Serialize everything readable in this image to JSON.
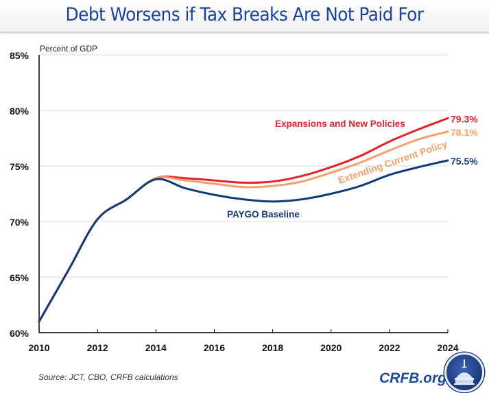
{
  "header": {
    "title": "Debt Worsens if Tax Breaks Are Not Paid For"
  },
  "footer": {
    "source": "Source: JCT, CBO, CRFB calculations",
    "brand": "CRFB.org",
    "logo_icon": "capitol-dome-seal-icon"
  },
  "colors": {
    "title": "#1a43a0",
    "red": "#e4202a",
    "orange": "#f4a06a",
    "navy": "#123a78"
  },
  "chart_data": {
    "type": "line",
    "title": "Debt Worsens if Tax Breaks Are Not Paid For",
    "ylabel": "Percent of GDP",
    "xlabel": "",
    "x": [
      2010,
      2011,
      2012,
      2013,
      2014,
      2015,
      2016,
      2017,
      2018,
      2019,
      2020,
      2021,
      2022,
      2023,
      2024
    ],
    "xlim": [
      2010,
      2024
    ],
    "ylim": [
      60,
      85
    ],
    "xticks": [
      2010,
      2012,
      2014,
      2016,
      2018,
      2020,
      2022,
      2024
    ],
    "xtick_labels": [
      "2010",
      "2012",
      "2014",
      "2016",
      "2018",
      "2020",
      "2022",
      "2024"
    ],
    "yticks": [
      60,
      65,
      70,
      75,
      80,
      85
    ],
    "ytick_labels": [
      "60%",
      "65%",
      "70%",
      "75%",
      "80%",
      "85%"
    ],
    "grid": "horizontal",
    "legend": "inline labels",
    "series": [
      {
        "name": "Expansions and New Policies",
        "color": "#e4202a",
        "end_label": "79.3%",
        "values": [
          61.0,
          65.6,
          70.2,
          72.0,
          73.9,
          73.9,
          73.7,
          73.5,
          73.6,
          74.1,
          74.9,
          75.9,
          77.2,
          78.3,
          79.3
        ]
      },
      {
        "name": "Extending Current Policy",
        "color": "#f4a06a",
        "end_label": "78.1%",
        "values": [
          61.0,
          65.6,
          70.2,
          72.0,
          73.9,
          73.7,
          73.4,
          73.1,
          73.2,
          73.6,
          74.4,
          75.3,
          76.4,
          77.4,
          78.1
        ]
      },
      {
        "name": "PAYGO Baseline",
        "color": "#123a78",
        "end_label": "75.5%",
        "values": [
          61.0,
          65.6,
          70.2,
          72.0,
          73.8,
          73.0,
          72.4,
          72.0,
          71.8,
          72.0,
          72.5,
          73.2,
          74.2,
          74.9,
          75.5
        ]
      }
    ]
  }
}
